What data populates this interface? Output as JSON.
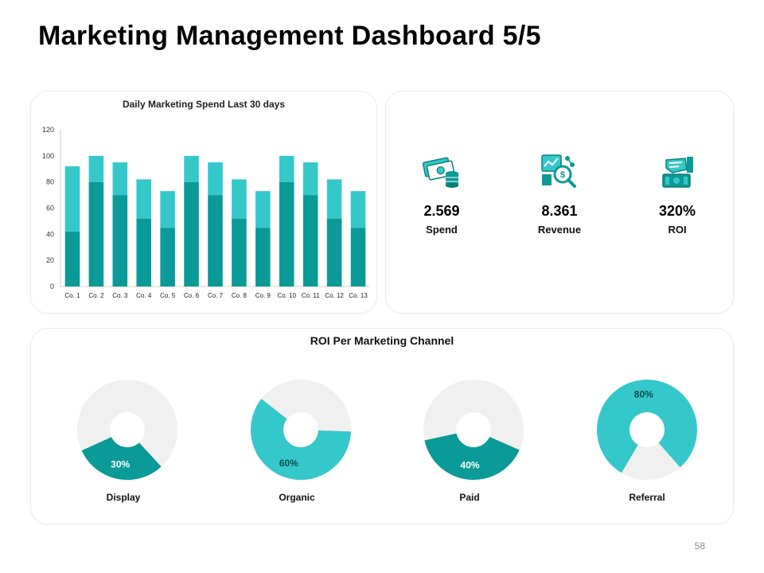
{
  "page": {
    "title": "Marketing Management Dashboard 5/5",
    "page_number": "58"
  },
  "colors": {
    "dark_teal": "#0a9a97",
    "light_teal": "#35c8cb",
    "donut_rest": "#f0f0f0"
  },
  "chart_data": [
    {
      "type": "bar",
      "stacked": true,
      "title": "Daily Marketing Spend Last 30 days",
      "categories": [
        "Co. 1",
        "Co. 2",
        "Co. 3",
        "Co. 4",
        "Co. 5",
        "Co. 6",
        "Co. 7",
        "Co. 8",
        "Co. 9",
        "Co. 10",
        "Co. 11",
        "Co. 12",
        "Co. 13"
      ],
      "series": [
        {
          "values": [
            42,
            80,
            70,
            52,
            45,
            80,
            70,
            52,
            45,
            80,
            70,
            52,
            45
          ]
        },
        {
          "values": [
            50,
            20,
            25,
            30,
            28,
            20,
            25,
            30,
            28,
            20,
            25,
            30,
            28
          ]
        }
      ],
      "ylim": [
        0,
        120
      ],
      "yticks": [
        0,
        20,
        40,
        60,
        80,
        100,
        120
      ],
      "grid": false,
      "legend": "none"
    },
    {
      "type": "pie",
      "title": "ROI Per Marketing Channel",
      "donuts": [
        {
          "name": "Display",
          "value": 30,
          "label": "30%"
        },
        {
          "name": "Organic",
          "value": 60,
          "label": "60%"
        },
        {
          "name": "Paid",
          "value": 40,
          "label": "40%"
        },
        {
          "name": "Referral",
          "value": 80,
          "label": "80%"
        }
      ]
    }
  ],
  "kpis": [
    {
      "value": "2.569",
      "label": "Spend",
      "icon": "money-coins-icon"
    },
    {
      "value": "8.361",
      "label": "Revenue",
      "icon": "revenue-search-icon"
    },
    {
      "value": "320%",
      "label": "ROI",
      "icon": "hand-money-icon"
    }
  ]
}
